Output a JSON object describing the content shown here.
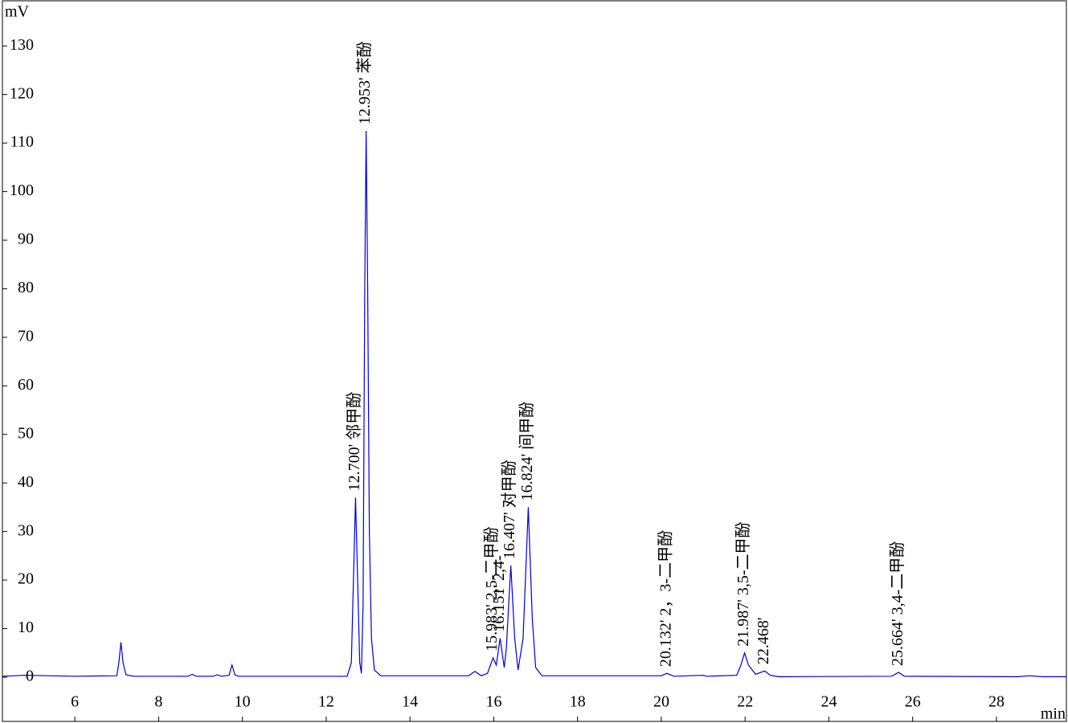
{
  "chart_data": {
    "type": "line",
    "y_label": "mV",
    "x_label": "min",
    "x": [
      4.27,
      4.8,
      6.0,
      7.0,
      7.05,
      7.1,
      7.15,
      7.22,
      7.4,
      8.7,
      8.8,
      8.9,
      9.3,
      9.4,
      9.5,
      9.68,
      9.75,
      9.82,
      9.9,
      12.5,
      12.6,
      12.65,
      12.7,
      12.75,
      12.8,
      12.84,
      12.88,
      12.92,
      12.953,
      12.99,
      13.03,
      13.08,
      13.15,
      13.3,
      15.4,
      15.55,
      15.7,
      15.85,
      15.983,
      16.06,
      16.151,
      16.25,
      16.3,
      16.407,
      16.5,
      16.58,
      16.7,
      16.824,
      16.92,
      17.0,
      17.15,
      20.0,
      20.132,
      20.3,
      21.0,
      21.1,
      21.8,
      21.9,
      21.987,
      22.08,
      22.25,
      22.468,
      22.6,
      22.8,
      25.5,
      25.664,
      25.8,
      28.5,
      28.8,
      29.1,
      29.67
    ],
    "values": [
      0.2,
      0.4,
      0.2,
      0.3,
      3,
      7.2,
      3,
      0.5,
      0.2,
      0.2,
      0.6,
      0.2,
      0.2,
      0.5,
      0.2,
      0.4,
      2.5,
      0.5,
      0.2,
      0.2,
      3,
      20,
      37,
      20,
      3,
      0.8,
      15,
      80,
      112.5,
      80,
      30,
      8,
      1.5,
      0.3,
      0.3,
      1.2,
      0.3,
      0.8,
      4,
      2.5,
      8,
      2,
      6,
      23,
      8,
      1.5,
      8,
      35,
      12,
      2,
      0.3,
      0.3,
      0.8,
      0.2,
      0.4,
      0.2,
      0.4,
      2.5,
      5,
      2.5,
      0.6,
      1.3,
      0.4,
      0.1,
      0.2,
      1,
      0.2,
      0.1,
      0.3,
      0.1,
      0.1
    ],
    "color": "#0000cc",
    "xlim": [
      4.27,
      29.67
    ],
    "xticks": [
      6,
      8,
      10,
      12,
      14,
      16,
      18,
      20,
      22,
      24,
      26,
      28
    ],
    "ylim": [
      -9.1,
      139.3
    ],
    "yticks": [
      0,
      10,
      20,
      30,
      40,
      50,
      60,
      70,
      80,
      90,
      100,
      110,
      120,
      130
    ],
    "peaks": [
      {
        "label": "12.700'  邻甲酚",
        "time": 12.7,
        "height": 37
      },
      {
        "label": "12.953'  苯酚",
        "time": 12.953,
        "height": 112.5
      },
      {
        "label": "15.983' 2,5-二甲酚",
        "time": 15.983,
        "height": 4
      },
      {
        "label": "16.151' 2,4-",
        "time": 16.151,
        "height": 8
      },
      {
        "label": "16.407' 对甲酚",
        "time": 16.407,
        "height": 23
      },
      {
        "label": "16.824'  间甲酚",
        "time": 16.824,
        "height": 35
      },
      {
        "label": "20.132'  2，3-二甲酚",
        "time": 20.132,
        "height": 0.8
      },
      {
        "label": "21.987'  3,5-二甲酚",
        "time": 21.987,
        "height": 5
      },
      {
        "label": "22.468'",
        "time": 22.468,
        "height": 1.3
      },
      {
        "label": "25.664'  3,4-二甲酚",
        "time": 25.664,
        "height": 1
      }
    ]
  }
}
